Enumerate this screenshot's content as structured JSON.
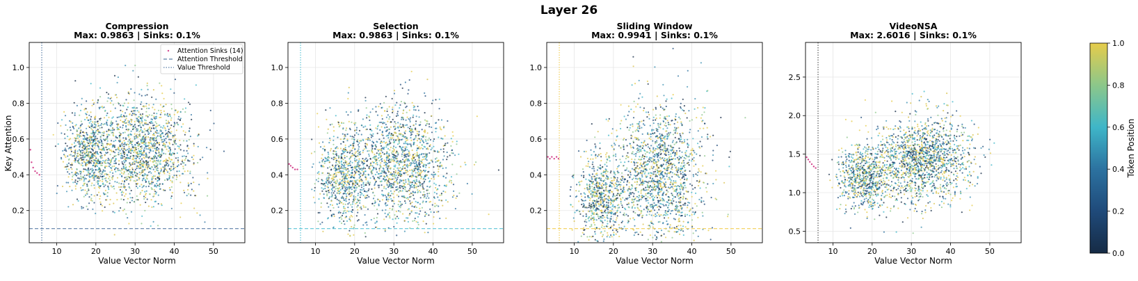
{
  "figure": {
    "suptitle": "Layer 26",
    "ylabel": "Key Attention",
    "colorbar": {
      "label": "Token Position",
      "ticks": [
        "0.0",
        "0.2",
        "0.4",
        "0.6",
        "0.8",
        "1.0"
      ]
    },
    "legend": {
      "placement": "upper-right",
      "entries": [
        "Attention Sinks (14)",
        "Attention Threshold",
        "Value Threshold"
      ]
    }
  },
  "chart_data": [
    {
      "type": "scatter",
      "title": "Compression",
      "subtitle": "Max: 0.9863 | Sinks: 0.1%",
      "xlabel": "Value Vector Norm",
      "ylabel": "Key Attention",
      "xlim": [
        3,
        58
      ],
      "ylim": [
        0.02,
        1.14
      ],
      "xticks": [
        10,
        20,
        30,
        40,
        50
      ],
      "yticks": [
        0.2,
        0.4,
        0.6,
        0.8,
        1.0
      ],
      "value_threshold": 6.2,
      "attention_threshold": 0.099,
      "threshold_color": "#5b7fa8",
      "clusters": [
        {
          "cx": 18,
          "cy": 0.52,
          "sx": 3.3,
          "sy": 0.13,
          "n": 700
        },
        {
          "cx": 32,
          "cy": 0.53,
          "sx": 6.2,
          "sy": 0.15,
          "n": 1500
        }
      ],
      "sinks": [
        [
          3.3,
          0.54
        ],
        [
          3.6,
          0.47
        ],
        [
          4.0,
          0.44
        ],
        [
          4.5,
          0.42
        ],
        [
          5.0,
          0.41
        ],
        [
          5.6,
          0.4
        ]
      ],
      "grid": true
    },
    {
      "type": "scatter",
      "title": "Selection",
      "subtitle": "Max: 0.9863 | Sinks: 0.1%",
      "xlabel": "Value Vector Norm",
      "xlim": [
        3,
        58
      ],
      "ylim": [
        0.02,
        1.14
      ],
      "xticks": [
        10,
        20,
        30,
        40,
        50
      ],
      "yticks": [
        0.2,
        0.4,
        0.6,
        0.8,
        1.0
      ],
      "value_threshold": 6.2,
      "attention_threshold": 0.099,
      "threshold_color": "#5bc5d6",
      "clusters": [
        {
          "cx": 17,
          "cy": 0.4,
          "sx": 3.5,
          "sy": 0.14,
          "n": 700
        },
        {
          "cx": 32,
          "cy": 0.46,
          "sx": 6.5,
          "sy": 0.17,
          "n": 1500
        }
      ],
      "sinks": [
        [
          3.3,
          0.46
        ],
        [
          3.7,
          0.45
        ],
        [
          4.2,
          0.44
        ],
        [
          4.8,
          0.43
        ],
        [
          5.4,
          0.43
        ]
      ],
      "grid": true
    },
    {
      "type": "scatter",
      "title": "Sliding Window",
      "subtitle": "Max: 0.9941 | Sinks: 0.1%",
      "xlabel": "Value Vector Norm",
      "xlim": [
        3,
        58
      ],
      "ylim": [
        0.02,
        1.14
      ],
      "xticks": [
        10,
        20,
        30,
        40,
        50
      ],
      "yticks": [
        0.2,
        0.4,
        0.6,
        0.8,
        1.0
      ],
      "value_threshold": 6.2,
      "attention_threshold": 0.099,
      "threshold_color": "#f2cf55",
      "clusters": [
        {
          "cx": 17,
          "cy": 0.28,
          "sx": 3.3,
          "sy": 0.12,
          "n": 700
        },
        {
          "cx": 32,
          "cy": 0.42,
          "sx": 5.8,
          "sy": 0.19,
          "n": 1500
        }
      ],
      "sinks": [
        [
          3.3,
          0.5
        ],
        [
          3.8,
          0.49
        ],
        [
          4.3,
          0.5
        ],
        [
          4.9,
          0.49
        ],
        [
          5.5,
          0.5
        ],
        [
          6.0,
          0.49
        ]
      ],
      "grid": true
    },
    {
      "type": "scatter",
      "title": "VideoNSA",
      "subtitle": "Max: 2.6016 | Sinks: 0.1%",
      "xlabel": "Value Vector Norm",
      "xlim": [
        3,
        58
      ],
      "ylim": [
        0.35,
        2.95
      ],
      "xticks": [
        10,
        20,
        30,
        40,
        50
      ],
      "yticks": [
        0.5,
        1.0,
        1.5,
        2.0,
        2.5
      ],
      "value_threshold": 6.2,
      "attention_threshold": null,
      "threshold_color": "#555555",
      "clusters": [
        {
          "cx": 18,
          "cy": 1.2,
          "sx": 3.4,
          "sy": 0.22,
          "n": 700
        },
        {
          "cx": 33,
          "cy": 1.42,
          "sx": 6.2,
          "sy": 0.28,
          "n": 1500
        }
      ],
      "sinks": [
        [
          3.3,
          1.46
        ],
        [
          3.7,
          1.43
        ],
        [
          4.1,
          1.4
        ],
        [
          4.6,
          1.37
        ],
        [
          5.1,
          1.34
        ],
        [
          5.6,
          1.32
        ]
      ],
      "grid": true
    }
  ]
}
